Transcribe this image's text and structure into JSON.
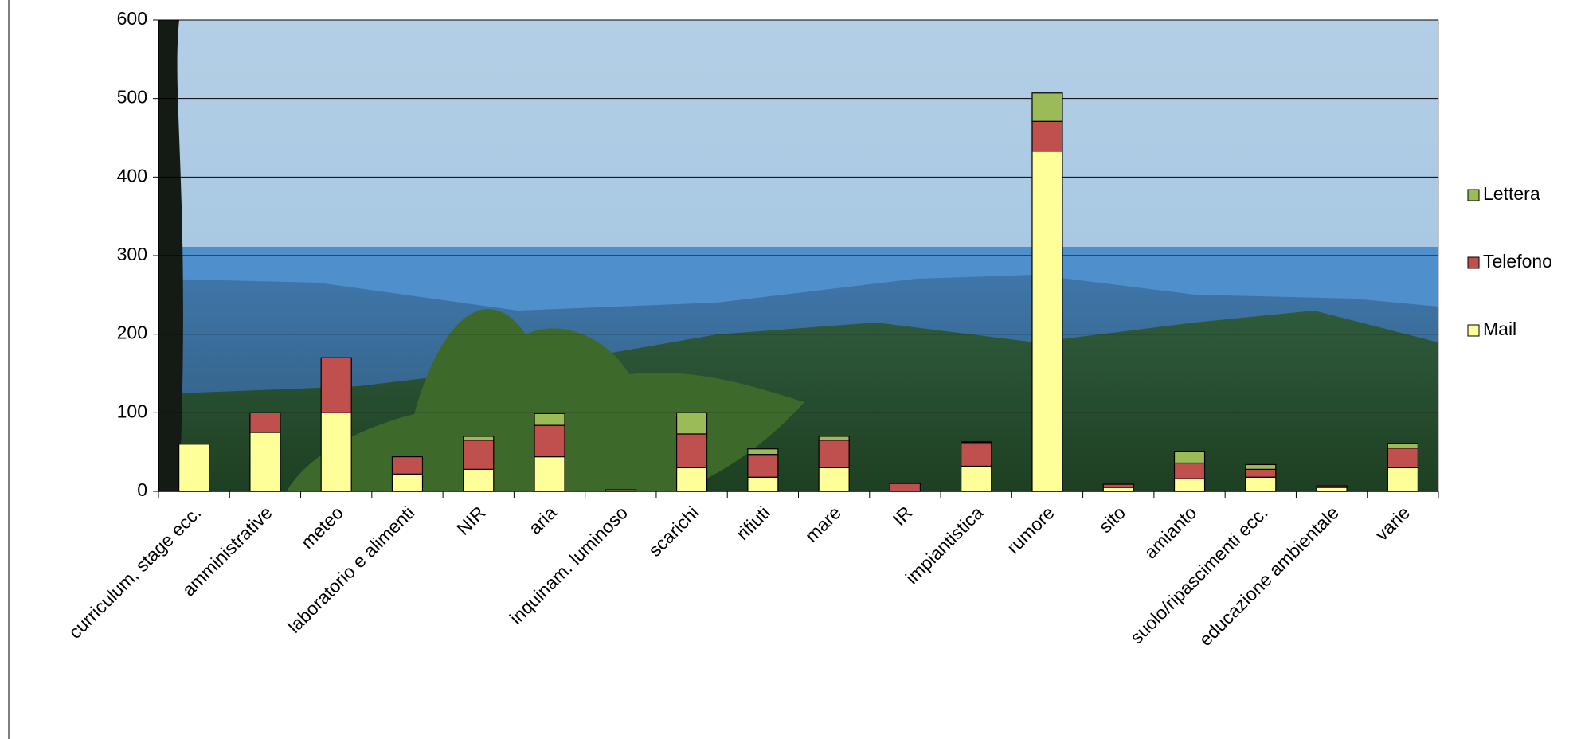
{
  "chart_data": {
    "type": "stacked_bar",
    "categories": [
      "curriculum, stage ecc.",
      "amministrative",
      "meteo",
      "laboratorio e alimenti",
      "NIR",
      "aria",
      "inquinam. luminoso",
      "scarichi",
      "rifiuti",
      "mare",
      "IR",
      "impiantistica",
      "rumore",
      "sito",
      "amianto",
      "suolo/ripascimenti ecc.",
      "educazione ambientale",
      "varie"
    ],
    "series": [
      {
        "name": "Mail",
        "color": "#ffff99",
        "values": [
          60,
          75,
          100,
          22,
          28,
          44,
          2,
          30,
          18,
          30,
          0,
          32,
          433,
          5,
          16,
          18,
          5,
          30
        ]
      },
      {
        "name": "Telefono",
        "color": "#c0504d",
        "values": [
          0,
          25,
          70,
          22,
          37,
          40,
          0,
          43,
          29,
          35,
          10,
          30,
          38,
          4,
          20,
          10,
          2,
          25
        ]
      },
      {
        "name": "Lettera",
        "color": "#9bbb59",
        "values": [
          0,
          0,
          0,
          0,
          5,
          15,
          0,
          27,
          7,
          5,
          0,
          1,
          36,
          0,
          15,
          6,
          0,
          6
        ]
      }
    ],
    "ylim": [
      0,
      600
    ],
    "yticks": [
      0,
      100,
      200,
      300,
      400,
      500,
      600
    ],
    "grid": true,
    "legend": "right"
  }
}
